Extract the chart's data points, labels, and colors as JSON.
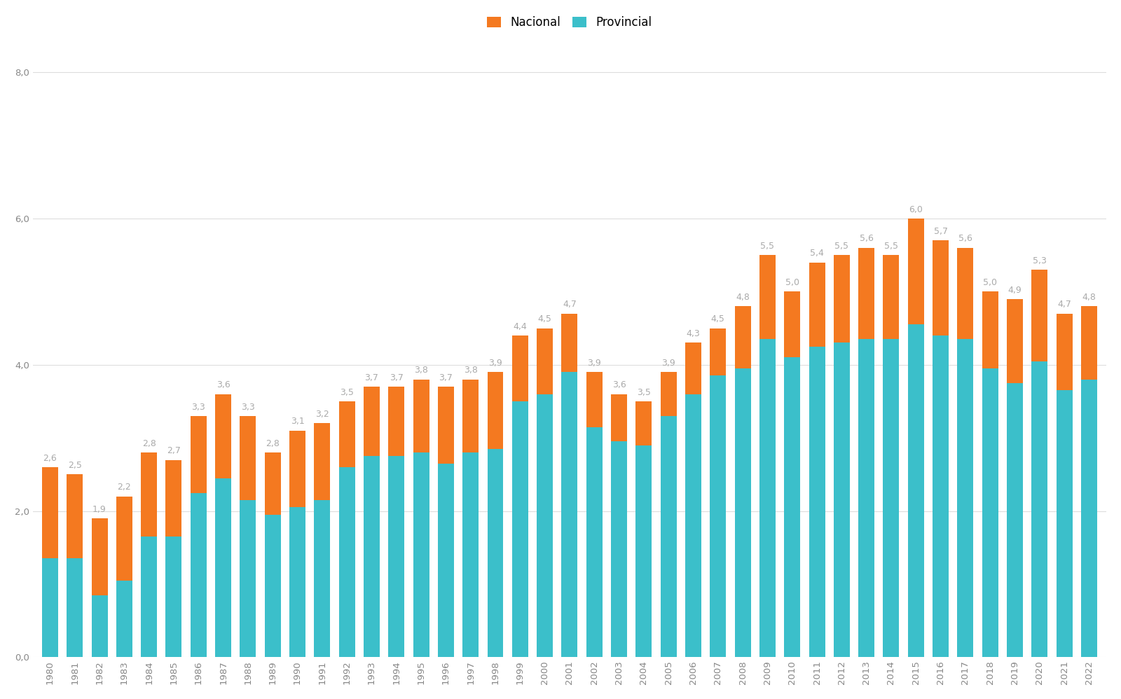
{
  "years": [
    1980,
    1981,
    1982,
    1983,
    1984,
    1985,
    1986,
    1987,
    1988,
    1989,
    1990,
    1991,
    1992,
    1993,
    1994,
    1995,
    1996,
    1997,
    1998,
    1999,
    2000,
    2001,
    2002,
    2003,
    2004,
    2005,
    2006,
    2007,
    2008,
    2009,
    2010,
    2011,
    2012,
    2013,
    2014,
    2015,
    2016,
    2017,
    2018,
    2019,
    2020,
    2021,
    2022
  ],
  "totals": [
    2.6,
    2.5,
    1.9,
    2.2,
    2.8,
    2.7,
    3.3,
    3.6,
    3.3,
    2.8,
    3.1,
    3.2,
    3.5,
    3.7,
    3.7,
    3.8,
    3.7,
    3.8,
    3.9,
    4.4,
    4.5,
    4.7,
    3.9,
    3.6,
    3.5,
    3.9,
    4.3,
    4.5,
    4.8,
    5.5,
    5.0,
    5.4,
    5.5,
    5.6,
    5.5,
    6.0,
    5.7,
    5.6,
    5.0,
    4.9,
    5.3,
    4.7,
    4.8
  ],
  "provincial": [
    1.35,
    1.35,
    0.85,
    1.05,
    1.65,
    1.65,
    2.25,
    2.45,
    2.15,
    1.95,
    2.05,
    2.15,
    2.6,
    2.75,
    2.75,
    2.8,
    2.65,
    2.8,
    2.85,
    3.5,
    3.6,
    3.9,
    3.15,
    2.95,
    2.9,
    3.3,
    3.6,
    3.85,
    3.95,
    4.35,
    4.1,
    4.25,
    4.3,
    4.35,
    4.35,
    4.55,
    4.4,
    4.35,
    3.95,
    3.75,
    4.05,
    3.65,
    3.8
  ],
  "color_nacional": "#F47920",
  "color_provincial": "#3BBFCA",
  "label_nacional": "Nacional",
  "label_provincial": "Provincial",
  "ylim_min": 0,
  "ylim_max": 8.5,
  "yticks": [
    0.0,
    2.0,
    4.0,
    6.0,
    8.0
  ],
  "ytick_labels": [
    "0,0",
    "2,0",
    "4,0",
    "6,0",
    "8,0"
  ],
  "background_color": "#FFFFFF",
  "bar_width": 0.65,
  "label_fontsize": 9.0,
  "tick_fontsize": 9.5,
  "legend_fontsize": 12,
  "label_color": "#AAAAAA",
  "grid_color": "#DDDDDD",
  "tick_color": "#888888"
}
